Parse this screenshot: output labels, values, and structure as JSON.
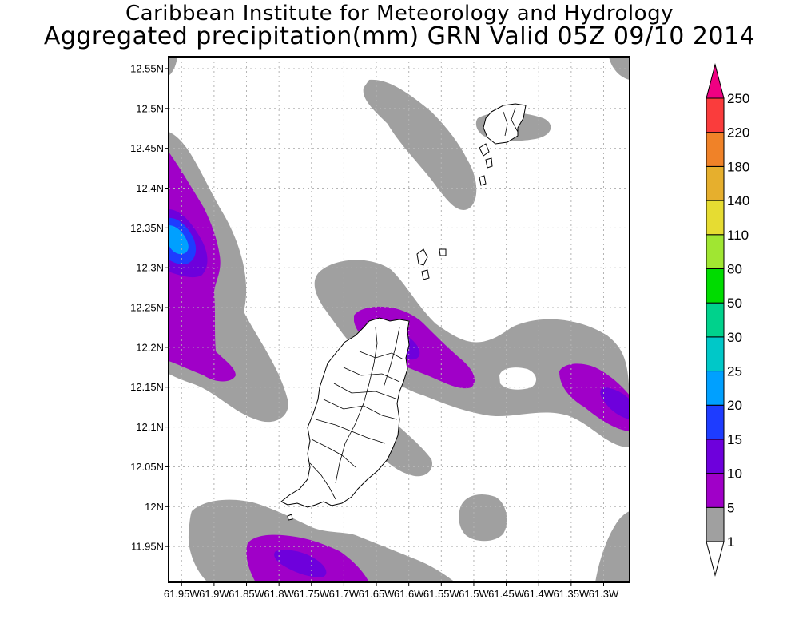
{
  "header": {
    "title": "Caribbean Institute for Meteorology and Hydrology",
    "subtitle": "Aggregated precipitation(mm) GRN Valid 05Z 09/10 2014"
  },
  "chart_data": {
    "type": "heatmap",
    "variable": "Aggregated precipitation",
    "units": "mm",
    "region": "GRN",
    "valid_time": "05Z 09/10 2014",
    "lon_range": [
      -61.97,
      -61.26
    ],
    "lat_range": [
      11.905,
      12.565
    ],
    "x_ticks": [
      {
        "value": -61.95,
        "label": "61.95W"
      },
      {
        "value": -61.9,
        "label": "61.9W"
      },
      {
        "value": -61.85,
        "label": "61.85W"
      },
      {
        "value": -61.8,
        "label": "61.8W"
      },
      {
        "value": -61.75,
        "label": "61.75W"
      },
      {
        "value": -61.7,
        "label": "61.7W"
      },
      {
        "value": -61.65,
        "label": "61.65W"
      },
      {
        "value": -61.6,
        "label": "61.6W"
      },
      {
        "value": -61.55,
        "label": "61.55W"
      },
      {
        "value": -61.5,
        "label": "61.5W"
      },
      {
        "value": -61.45,
        "label": "61.45W"
      },
      {
        "value": -61.4,
        "label": "61.4W"
      },
      {
        "value": -61.35,
        "label": "61.35W"
      },
      {
        "value": -61.3,
        "label": "61.3W"
      }
    ],
    "y_ticks": [
      {
        "value": 12.55,
        "label": "12.55N"
      },
      {
        "value": 12.5,
        "label": "12.5N"
      },
      {
        "value": 12.45,
        "label": "12.45N"
      },
      {
        "value": 12.4,
        "label": "12.4N"
      },
      {
        "value": 12.35,
        "label": "12.35N"
      },
      {
        "value": 12.3,
        "label": "12.3N"
      },
      {
        "value": 12.25,
        "label": "12.25N"
      },
      {
        "value": 12.2,
        "label": "12.2N"
      },
      {
        "value": 12.15,
        "label": "12.15N"
      },
      {
        "value": 12.1,
        "label": "12.1N"
      },
      {
        "value": 12.05,
        "label": "12.05N"
      },
      {
        "value": 12.0,
        "label": "12N"
      },
      {
        "value": 11.95,
        "label": "11.95N"
      }
    ],
    "grid": true,
    "colorbar": {
      "labels": [
        "1",
        "5",
        "10",
        "15",
        "20",
        "25",
        "30",
        "50",
        "80",
        "110",
        "140",
        "180",
        "220",
        "250"
      ],
      "colors": [
        "#a0a0a0",
        "#a000c8",
        "#6e00dc",
        "#1e3cff",
        "#00a0ff",
        "#00c8c8",
        "#00d28c",
        "#00dc00",
        "#a0e632",
        "#e6dc32",
        "#e6af2d",
        "#f08228",
        "#fa3c3c",
        "#f00082"
      ],
      "under_color": "#ffffff",
      "over_color": "#f00082"
    }
  }
}
